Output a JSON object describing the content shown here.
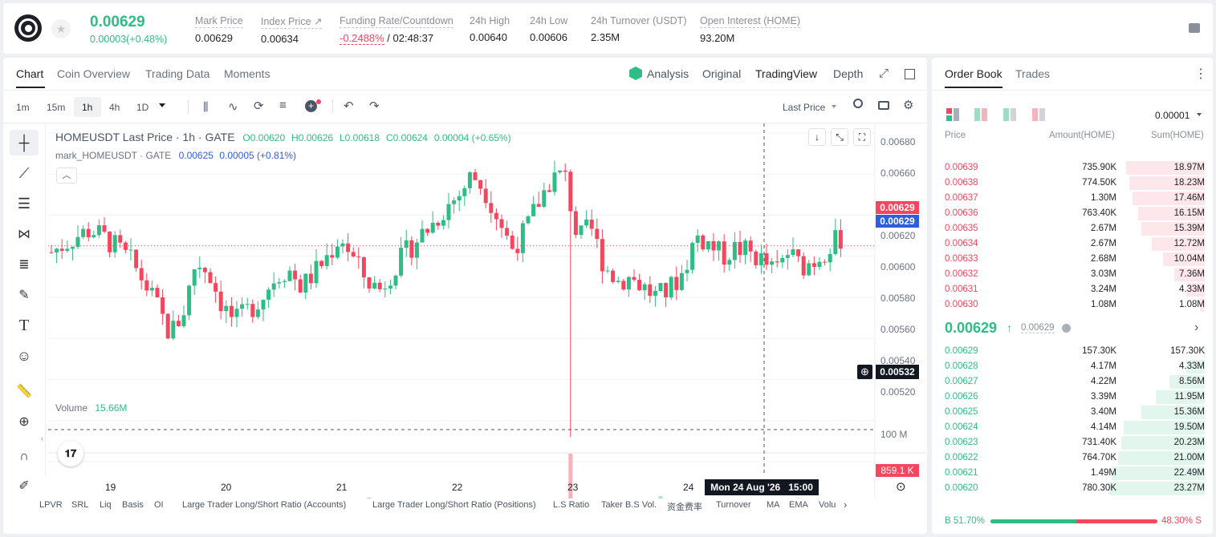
{
  "header": {
    "price": "0.00629",
    "change": "0.00003(+0.48%)",
    "stats": [
      {
        "label": "Mark Price",
        "value": "0.00629"
      },
      {
        "label": "Index Price ↗",
        "value": "0.00634"
      },
      {
        "label": "Funding Rate/Countdown",
        "value_red": "-0.2488%",
        "value": "/ 02:48:37"
      },
      {
        "label": "24h High",
        "value": "0.00640"
      },
      {
        "label": "24h Low",
        "value": "0.00606"
      },
      {
        "label": "24h Turnover (USDT)",
        "value": "2.35M"
      },
      {
        "label": "Open Interest (HOME)",
        "value": "93.20M"
      }
    ]
  },
  "chart_panel": {
    "tabs": [
      "Chart",
      "Coin Overview",
      "Trading Data",
      "Moments"
    ],
    "views": {
      "analysis": "Analysis",
      "original": "Original",
      "tradingview": "TradingView",
      "depth": "Depth"
    },
    "intervals": [
      "1m",
      "15m",
      "1h",
      "4h",
      "1D"
    ],
    "active_interval": "1h",
    "price_type": "Last Price"
  },
  "chart": {
    "legend_title": "HOMEUSDT Last Price · 1h · GATE",
    "ohlc": {
      "o": "O0.00620",
      "h": "H0.00626",
      "l": "L0.00618",
      "c": "C0.00624",
      "chg": "0.00004 (+0.65%)"
    },
    "mark_line": {
      "name": "mark_HOMEUSDT · GATE",
      "value": "0.00625",
      "chg": "0.00005 (+0.81%)"
    },
    "volume_label": "Volume",
    "volume_value": "15.66M",
    "y_ticks": [
      "0.00680",
      "0.00660",
      "0.00620",
      "0.00600",
      "0.00580",
      "0.00560",
      "0.00540",
      "0.00520"
    ],
    "price_tag_red": "0.00629",
    "price_tag_blue": "0.00629",
    "crosshair_price": "0.00532",
    "vol_tick": "100 M",
    "vol_tag": "859.1 K",
    "x_ticks": [
      "19",
      "20",
      "21",
      "22",
      "23",
      "24"
    ],
    "crosshair_time": "Mon 24 Aug '26   15:00",
    "indicators": [
      "LPVR",
      "SRL",
      "Liq",
      "Basis",
      "OI",
      "Large Trader Long/Short Ratio (Accounts)",
      "Large Trader Long/Short Ratio (Positions)",
      "L.S Ratio",
      "Taker B.S Vol.",
      "资金费率",
      "Turnover",
      "MA",
      "EMA",
      "Volu"
    ]
  },
  "chart_data": {
    "type": "candlestick",
    "interval": "1h",
    "y_range": [
      0.0052,
      0.0068
    ],
    "x_day_ticks": [
      "19",
      "20",
      "21",
      "22",
      "23",
      "24"
    ],
    "close_path": [
      0.00622,
      0.00626,
      0.0063,
      0.00633,
      0.00629,
      0.00624,
      0.00618,
      0.00608,
      0.00596,
      0.00582,
      0.00592,
      0.00618,
      0.00612,
      0.00596,
      0.00588,
      0.00594,
      0.006,
      0.0061,
      0.00614,
      0.00605,
      0.00612,
      0.0062,
      0.0063,
      0.00618,
      0.00608,
      0.00604,
      0.00614,
      0.00622,
      0.0063,
      0.00636,
      0.00644,
      0.0065,
      0.0066,
      0.00652,
      0.00638,
      0.00624,
      0.00632,
      0.00646,
      0.00658,
      0.0066,
      0.00628,
      0.00634,
      0.00616,
      0.00608,
      0.0061,
      0.00605,
      0.006,
      0.00604,
      0.00612,
      0.0063,
      0.00626,
      0.0062,
      0.00624,
      0.00622,
      0.00618,
      0.00612,
      0.00622,
      0.00615,
      0.00618,
      0.00624,
      0.00629
    ],
    "wick_low": 0.00532,
    "volume_spike": "at 22 close"
  },
  "orderbook": {
    "tabs": [
      "Order Book",
      "Trades"
    ],
    "precision": "0.00001",
    "columns": [
      "Price",
      "Amount(HOME)",
      "Sum(HOME)"
    ],
    "asks": [
      {
        "p": "0.00639",
        "a": "735.90K",
        "s": "18.97M",
        "d": 0.82
      },
      {
        "p": "0.00638",
        "a": "774.50K",
        "s": "18.23M",
        "d": 0.78
      },
      {
        "p": "0.00637",
        "a": "1.30M",
        "s": "17.46M",
        "d": 0.75
      },
      {
        "p": "0.00636",
        "a": "763.40K",
        "s": "16.15M",
        "d": 0.69
      },
      {
        "p": "0.00635",
        "a": "2.67M",
        "s": "15.39M",
        "d": 0.66
      },
      {
        "p": "0.00634",
        "a": "2.67M",
        "s": "12.72M",
        "d": 0.55
      },
      {
        "p": "0.00633",
        "a": "2.68M",
        "s": "10.04M",
        "d": 0.43
      },
      {
        "p": "0.00632",
        "a": "3.03M",
        "s": "7.36M",
        "d": 0.32
      },
      {
        "p": "0.00631",
        "a": "3.24M",
        "s": "4.33M",
        "d": 0.19
      },
      {
        "p": "0.00630",
        "a": "1.08M",
        "s": "1.08M",
        "d": 0.05
      }
    ],
    "last_price": "0.00629",
    "mark_price": "0.00629",
    "bids": [
      {
        "p": "0.00629",
        "a": "157.30K",
        "s": "157.30K",
        "d": 0.01
      },
      {
        "p": "0.00628",
        "a": "4.17M",
        "s": "4.33M",
        "d": 0.19
      },
      {
        "p": "0.00627",
        "a": "4.22M",
        "s": "8.56M",
        "d": 0.37
      },
      {
        "p": "0.00626",
        "a": "3.39M",
        "s": "11.95M",
        "d": 0.51
      },
      {
        "p": "0.00625",
        "a": "3.40M",
        "s": "15.36M",
        "d": 0.66
      },
      {
        "p": "0.00624",
        "a": "4.14M",
        "s": "19.50M",
        "d": 0.84
      },
      {
        "p": "0.00623",
        "a": "731.40K",
        "s": "20.23M",
        "d": 0.87
      },
      {
        "p": "0.00622",
        "a": "764.70K",
        "s": "21.00M",
        "d": 0.9
      },
      {
        "p": "0.00621",
        "a": "1.49M",
        "s": "22.49M",
        "d": 0.97
      },
      {
        "p": "0.00620",
        "a": "780.30K",
        "s": "23.27M",
        "d": 1.0
      }
    ],
    "buy_pct": "B 51.70%",
    "sell_pct": "48.30% S",
    "buy_ratio": 0.517
  },
  "colors": {
    "green": "#2ebd85",
    "red": "#f6465d",
    "blue": "#2e5ee0"
  }
}
